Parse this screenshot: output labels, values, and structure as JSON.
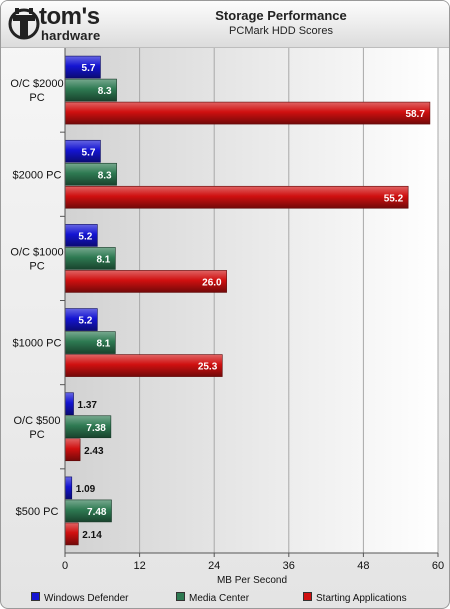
{
  "logo": {
    "brand": "tom's",
    "sub": "hardware"
  },
  "chart_data": {
    "type": "bar",
    "orientation": "horizontal",
    "title": "Storage Performance",
    "subtitle": "PCMark HDD Scores",
    "xlabel": "MB Per Second",
    "xlim": [
      0,
      60
    ],
    "xticks": [
      0,
      12,
      24,
      36,
      48,
      60
    ],
    "grid": true,
    "legend_position": "bottom",
    "categories": [
      "O/C $2000 PC",
      "$2000 PC",
      "O/C $1000 PC",
      "$1000 PC",
      "O/C $500 PC",
      "$500 PC"
    ],
    "series": [
      {
        "name": "Windows Defender",
        "color": "#1414d2",
        "values": [
          5.7,
          5.7,
          5.2,
          5.2,
          1.37,
          1.09
        ],
        "labels": [
          "5.7",
          "5.7",
          "5.2",
          "5.2",
          "1.37",
          "1.09"
        ]
      },
      {
        "name": "Media Center",
        "color": "#2e7a52",
        "values": [
          8.3,
          8.3,
          8.1,
          8.1,
          7.38,
          7.48
        ],
        "labels": [
          "8.3",
          "8.3",
          "8.1",
          "8.1",
          "7.38",
          "7.48"
        ]
      },
      {
        "name": "Starting Applications",
        "color": "#d01010",
        "values": [
          58.7,
          55.2,
          26.0,
          25.3,
          2.43,
          2.14
        ],
        "labels": [
          "58.7",
          "55.2",
          "26.0",
          "25.3",
          "2.43",
          "2.14"
        ]
      }
    ]
  }
}
